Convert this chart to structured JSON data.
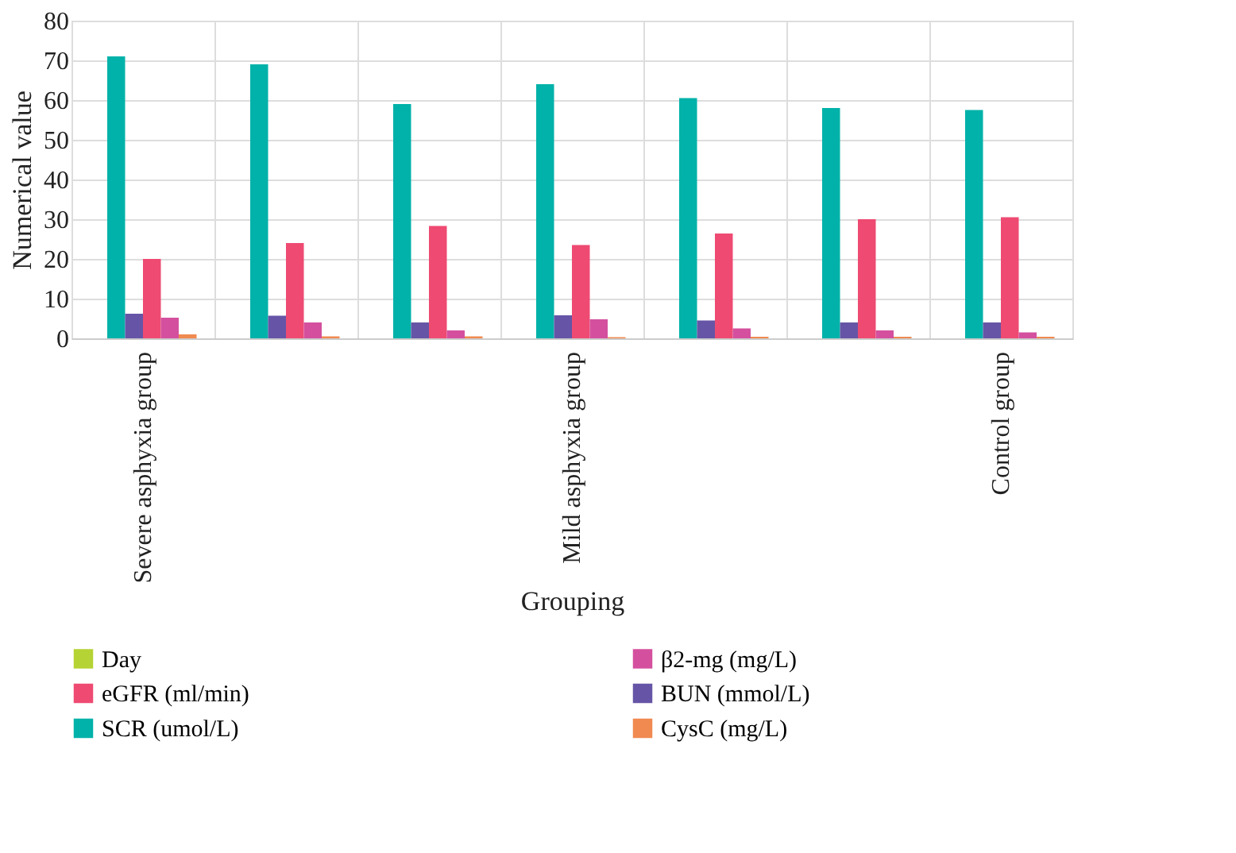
{
  "chart_data": {
    "type": "bar",
    "xlabel": "Grouping",
    "ylabel": "Numerical value",
    "categories": [
      "Severe asphyxia group",
      null,
      null,
      "Mild asphyxia group",
      null,
      null,
      "Control group"
    ],
    "series": [
      {
        "name": "Day",
        "color": "#b5d334",
        "values": [
          null,
          null,
          null,
          null,
          null,
          null,
          null
        ]
      },
      {
        "name": "eGFR (ml/min)",
        "color": "#ee4a72",
        "values": [
          20,
          24,
          28.3,
          23.5,
          26.4,
          30,
          30.5
        ]
      },
      {
        "name": "SCR (umol/L)",
        "color": "#00b2a9",
        "values": [
          71,
          69,
          59,
          64,
          60.5,
          58,
          57.5
        ]
      },
      {
        "name": "β2-mg (mg/L)",
        "color": "#d4509e",
        "values": [
          5.2,
          4,
          2,
          4.8,
          2.5,
          2,
          1.5
        ]
      },
      {
        "name": "BUN (mmol/L)",
        "color": "#6655a6",
        "values": [
          6.2,
          5.7,
          4,
          5.8,
          4.5,
          4,
          4
        ]
      },
      {
        "name": "CysC (mg/L)",
        "color": "#f08a50",
        "values": [
          1,
          0.5,
          0.5,
          0.3,
          0.4,
          0.4,
          0.4
        ]
      }
    ],
    "ylim": [
      0,
      80
    ],
    "yticks": [
      0,
      10,
      20,
      30,
      40,
      50,
      60,
      70,
      80
    ],
    "grid": true,
    "legend": "bottom"
  }
}
